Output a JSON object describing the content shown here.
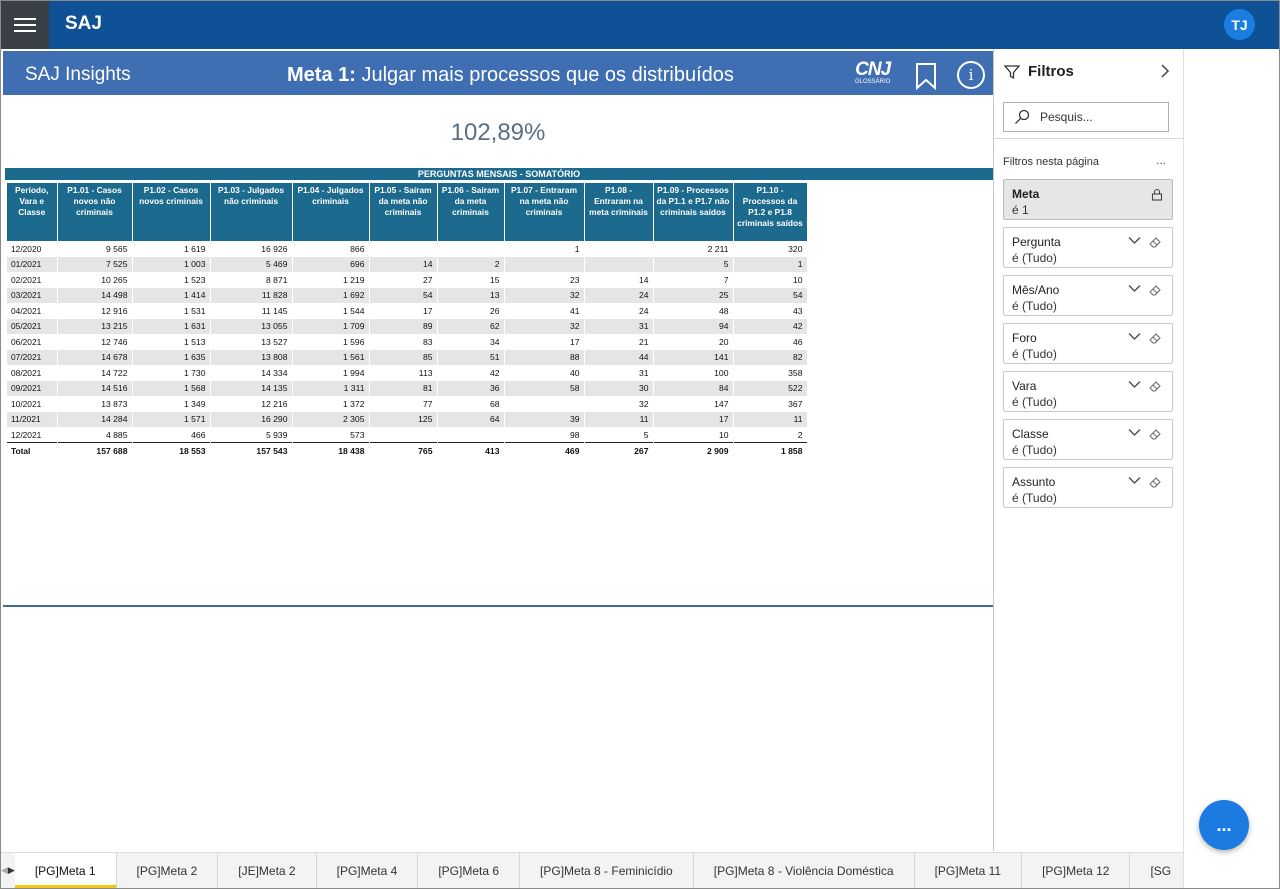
{
  "app": {
    "brand": "SAJ",
    "avatar_initials": "TJ"
  },
  "report": {
    "left_title": "SAJ Insights",
    "title_bold": "Meta 1:",
    "title_rest": " Julgar mais processos que os distribuídos",
    "cnj_logo": "CNJ",
    "cnj_caption": "GLOSSÁRIO",
    "info_glyph": "i",
    "kpi_value": "102,89%",
    "table_title": "PERGUNTAS MENSAIS - SOMATÓRIO"
  },
  "table": {
    "headers": [
      "Período, Vara e Classe",
      "P1.01 - Casos novos não criminais",
      "P1.02 - Casos novos criminais",
      "P1.03 - Julgados não criminais",
      "P1.04 - Julgados criminais",
      "P1.05 - Saíram da meta não criminais",
      "P1.06 - Saíram da meta criminais",
      "P1.07 - Entraram na meta não criminais",
      "P1.08 - Entraram na meta criminais",
      "P1.09 - Processos da P1.1 e P1.7 não criminais saídos",
      "P1.10 - Processos da P1.2 e P1.8 criminais saídos"
    ],
    "rows": [
      [
        "12/2020",
        "9 565",
        "1 619",
        "16 926",
        "866",
        "",
        "",
        "1",
        "",
        "2 211",
        "320"
      ],
      [
        "01/2021",
        "7 525",
        "1 003",
        "5 469",
        "696",
        "14",
        "2",
        "",
        "",
        "5",
        "1"
      ],
      [
        "02/2021",
        "10 265",
        "1 523",
        "8 871",
        "1 219",
        "27",
        "15",
        "23",
        "14",
        "7",
        "10"
      ],
      [
        "03/2021",
        "14 498",
        "1 414",
        "11 828",
        "1 692",
        "54",
        "13",
        "32",
        "24",
        "25",
        "54"
      ],
      [
        "04/2021",
        "12 916",
        "1 531",
        "11 145",
        "1 544",
        "17",
        "26",
        "41",
        "24",
        "48",
        "43"
      ],
      [
        "05/2021",
        "13 215",
        "1 631",
        "13 055",
        "1 709",
        "89",
        "62",
        "32",
        "31",
        "94",
        "42"
      ],
      [
        "06/2021",
        "12 746",
        "1 513",
        "13 527",
        "1 596",
        "83",
        "34",
        "17",
        "21",
        "20",
        "46"
      ],
      [
        "07/2021",
        "14 678",
        "1 635",
        "13 808",
        "1 561",
        "85",
        "51",
        "88",
        "44",
        "141",
        "82"
      ],
      [
        "08/2021",
        "14 722",
        "1 730",
        "14 334",
        "1 994",
        "113",
        "42",
        "40",
        "31",
        "100",
        "358"
      ],
      [
        "09/2021",
        "14 516",
        "1 568",
        "14 135",
        "1 311",
        "81",
        "36",
        "58",
        "30",
        "84",
        "522"
      ],
      [
        "10/2021",
        "13 873",
        "1 349",
        "12 216",
        "1 372",
        "77",
        "68",
        "",
        "32",
        "147",
        "367"
      ],
      [
        "11/2021",
        "14 284",
        "1 571",
        "16 290",
        "2 305",
        "125",
        "64",
        "39",
        "11",
        "17",
        "11"
      ],
      [
        "12/2021",
        "4 885",
        "466",
        "5 939",
        "573",
        "",
        "",
        "98",
        "5",
        "10",
        "2"
      ]
    ],
    "total": [
      "Total",
      "157 688",
      "18 553",
      "157 543",
      "18 438",
      "765",
      "413",
      "469",
      "267",
      "2 909",
      "1 858"
    ]
  },
  "filters": {
    "title": "Filtros",
    "search_placeholder": "Pesquis...",
    "section_label": "Filtros nesta página",
    "more": "...",
    "cards": [
      {
        "name": "Meta",
        "value": "é 1",
        "locked": true
      },
      {
        "name": "Pergunta",
        "value": "é (Tudo)"
      },
      {
        "name": "Mês/Ano",
        "value": "é (Tudo)"
      },
      {
        "name": "Foro",
        "value": "é (Tudo)"
      },
      {
        "name": "Vara",
        "value": "é (Tudo)"
      },
      {
        "name": "Classe",
        "value": "é (Tudo)"
      },
      {
        "name": "Assunto",
        "value": "é (Tudo)"
      }
    ]
  },
  "fab_label": "...",
  "tabs": {
    "nav_prev": "◀",
    "nav_next": "▶",
    "items": [
      "[PG]Meta 1",
      "[PG]Meta 2",
      "[JE]Meta 2",
      "[PG]Meta 4",
      "[PG]Meta 6",
      "[PG]Meta 8 - Feminicídio",
      "[PG]Meta 8 - Violência Doméstica",
      "[PG]Meta 11",
      "[PG]Meta 12",
      "[SG"
    ],
    "active_index": 0
  }
}
